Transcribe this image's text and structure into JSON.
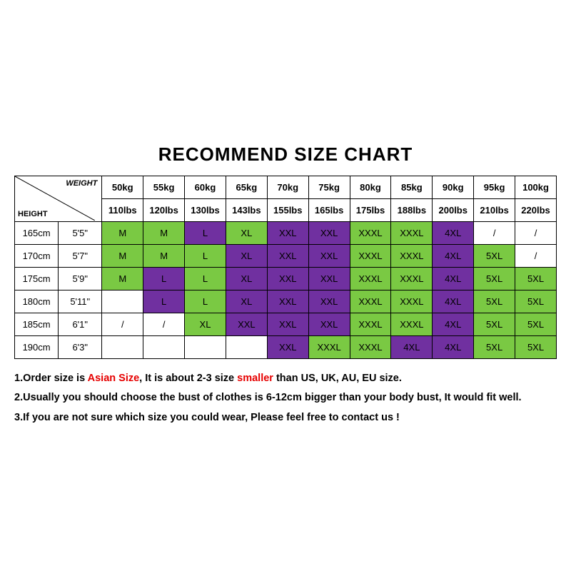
{
  "title": "RECOMMEND SIZE CHART",
  "cornerWeight": "WEIGHT",
  "cornerHeight": "HEIGHT",
  "colors": {
    "green": "#7ac943",
    "purple": "#7030a0",
    "border": "#000000",
    "red": "#e60000"
  },
  "weights_kg": [
    "50kg",
    "55kg",
    "60kg",
    "65kg",
    "70kg",
    "75kg",
    "80kg",
    "85kg",
    "90kg",
    "95kg",
    "100kg"
  ],
  "weights_lbs": [
    "110lbs",
    "120lbs",
    "130lbs",
    "143lbs",
    "155lbs",
    "165lbs",
    "175lbs",
    "188lbs",
    "200lbs",
    "210lbs",
    "220lbs"
  ],
  "heights": [
    {
      "cm": "165cm",
      "ft": "5'5\""
    },
    {
      "cm": "170cm",
      "ft": "5'7\""
    },
    {
      "cm": "175cm",
      "ft": "5'9\""
    },
    {
      "cm": "180cm",
      "ft": "5'11\""
    },
    {
      "cm": "185cm",
      "ft": "6'1\""
    },
    {
      "cm": "190cm",
      "ft": "6'3\""
    }
  ],
  "cells": [
    [
      [
        "M",
        "g"
      ],
      [
        "M",
        "g"
      ],
      [
        "L",
        "p"
      ],
      [
        "XL",
        "g"
      ],
      [
        "XXL",
        "p"
      ],
      [
        "XXL",
        "p"
      ],
      [
        "XXXL",
        "g"
      ],
      [
        "XXXL",
        "g"
      ],
      [
        "4XL",
        "p"
      ],
      [
        "/",
        ""
      ],
      [
        "/",
        ""
      ]
    ],
    [
      [
        "M",
        "g"
      ],
      [
        "M",
        "g"
      ],
      [
        "L",
        "g"
      ],
      [
        "XL",
        "p"
      ],
      [
        "XXL",
        "p"
      ],
      [
        "XXL",
        "p"
      ],
      [
        "XXXL",
        "g"
      ],
      [
        "XXXL",
        "g"
      ],
      [
        "4XL",
        "p"
      ],
      [
        "5XL",
        "g"
      ],
      [
        "/",
        ""
      ]
    ],
    [
      [
        "M",
        "g"
      ],
      [
        "L",
        "p"
      ],
      [
        "L",
        "g"
      ],
      [
        "XL",
        "p"
      ],
      [
        "XXL",
        "p"
      ],
      [
        "XXL",
        "p"
      ],
      [
        "XXXL",
        "g"
      ],
      [
        "XXXL",
        "g"
      ],
      [
        "4XL",
        "p"
      ],
      [
        "5XL",
        "g"
      ],
      [
        "5XL",
        "g"
      ]
    ],
    [
      [
        "",
        ""
      ],
      [
        "L",
        "p"
      ],
      [
        "L",
        "g"
      ],
      [
        "XL",
        "p"
      ],
      [
        "XXL",
        "p"
      ],
      [
        "XXL",
        "p"
      ],
      [
        "XXXL",
        "g"
      ],
      [
        "XXXL",
        "g"
      ],
      [
        "4XL",
        "p"
      ],
      [
        "5XL",
        "g"
      ],
      [
        "5XL",
        "g"
      ]
    ],
    [
      [
        "/",
        ""
      ],
      [
        "/",
        ""
      ],
      [
        "XL",
        "g"
      ],
      [
        "XXL",
        "p"
      ],
      [
        "XXL",
        "p"
      ],
      [
        "XXL",
        "p"
      ],
      [
        "XXXL",
        "g"
      ],
      [
        "XXXL",
        "g"
      ],
      [
        "4XL",
        "p"
      ],
      [
        "5XL",
        "g"
      ],
      [
        "5XL",
        "g"
      ]
    ],
    [
      [
        "",
        ""
      ],
      [
        "",
        ""
      ],
      [
        "",
        ""
      ],
      [
        "",
        ""
      ],
      [
        "XXL",
        "p"
      ],
      [
        "XXXL",
        "g"
      ],
      [
        "XXXL",
        "g"
      ],
      [
        "4XL",
        "p"
      ],
      [
        "4XL",
        "p"
      ],
      [
        "5XL",
        "g"
      ],
      [
        "5XL",
        "g"
      ]
    ]
  ],
  "notes": [
    {
      "pre": "1.Order size is ",
      "red1": "Asian Size",
      "mid": ", It is about 2-3 size ",
      "red2": "smaller",
      "post": " than US, UK, AU, EU size."
    },
    {
      "text": "2.Usually you should choose the bust of clothes is 6-12cm bigger than your body bust, It would fit well."
    },
    {
      "text": "3.If you are not sure which size you could wear, Please feel free to contact us !"
    }
  ]
}
